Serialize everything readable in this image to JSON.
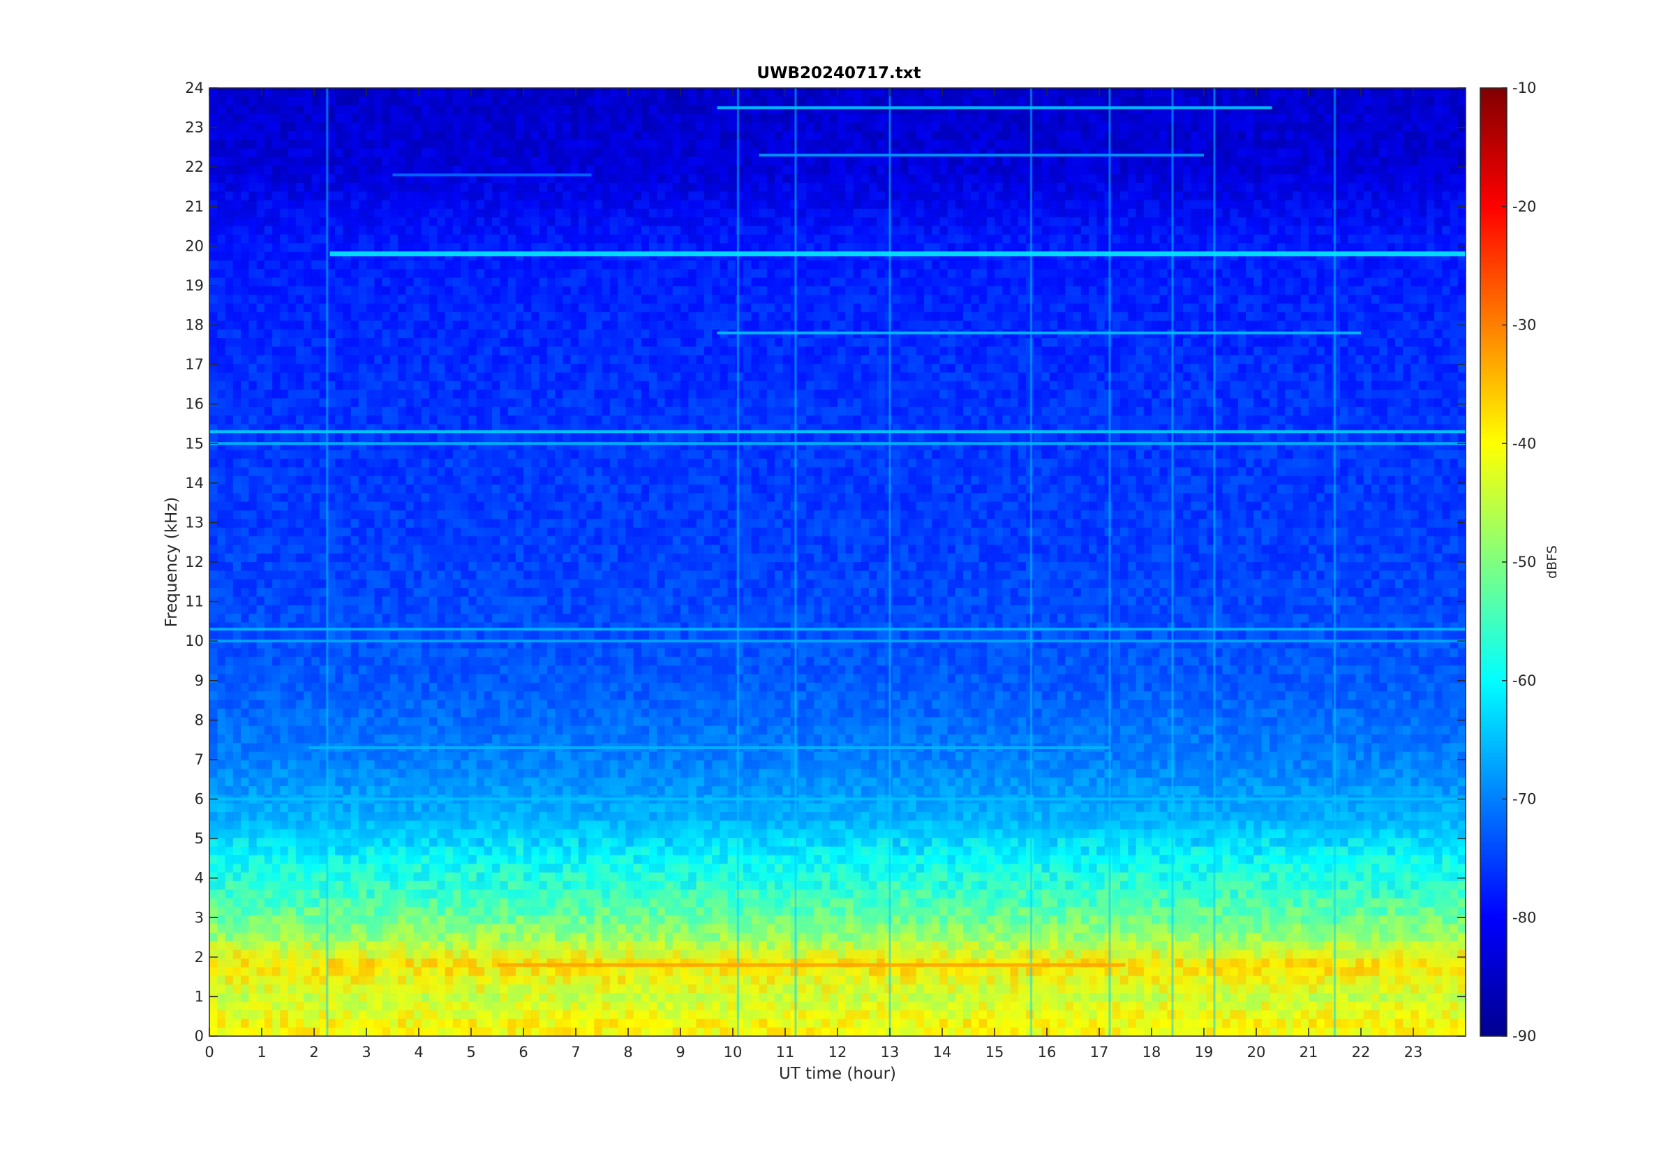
{
  "chart_data": {
    "type": "heatmap",
    "title": "UWB20240717.txt",
    "xlabel": "UT time (hour)",
    "ylabel": "Frequency (kHz)",
    "xlim": [
      0,
      24
    ],
    "ylim": [
      0,
      24
    ],
    "x_ticks": [
      "0",
      "1",
      "2",
      "3",
      "4",
      "5",
      "6",
      "7",
      "8",
      "9",
      "10",
      "11",
      "12",
      "13",
      "14",
      "15",
      "16",
      "17",
      "18",
      "19",
      "20",
      "21",
      "22",
      "23"
    ],
    "y_ticks": [
      "0",
      "1",
      "2",
      "3",
      "4",
      "5",
      "6",
      "7",
      "8",
      "9",
      "10",
      "11",
      "12",
      "13",
      "14",
      "15",
      "16",
      "17",
      "18",
      "19",
      "20",
      "21",
      "22",
      "23",
      "24"
    ],
    "colorbar": {
      "label": "dBFS",
      "colormap": "jet",
      "clim": [
        -90,
        -10
      ],
      "ticks": [
        "-10",
        "-20",
        "-30",
        "-40",
        "-50",
        "-60",
        "-70",
        "-80",
        "-90"
      ]
    },
    "background_level_profile": [
      {
        "freq_khz": 0.3,
        "dbfs": -40
      },
      {
        "freq_khz": 1.0,
        "dbfs": -44
      },
      {
        "freq_khz": 1.8,
        "dbfs": -38
      },
      {
        "freq_khz": 2.5,
        "dbfs": -48
      },
      {
        "freq_khz": 3.5,
        "dbfs": -55
      },
      {
        "freq_khz": 4.5,
        "dbfs": -60
      },
      {
        "freq_khz": 5.5,
        "dbfs": -66
      },
      {
        "freq_khz": 7.0,
        "dbfs": -70
      },
      {
        "freq_khz": 9.0,
        "dbfs": -73
      },
      {
        "freq_khz": 12.0,
        "dbfs": -75
      },
      {
        "freq_khz": 16.0,
        "dbfs": -76
      },
      {
        "freq_khz": 20.0,
        "dbfs": -78
      },
      {
        "freq_khz": 22.0,
        "dbfs": -83
      },
      {
        "freq_khz": 24.0,
        "dbfs": -84
      }
    ],
    "tonal_lines": [
      {
        "freq_khz": 19.8,
        "t_start": 2.3,
        "t_end": 24.0,
        "dbfs": -62
      },
      {
        "freq_khz": 23.5,
        "t_start": 9.7,
        "t_end": 20.3,
        "dbfs": -65
      },
      {
        "freq_khz": 22.3,
        "t_start": 10.5,
        "t_end": 19.0,
        "dbfs": -68
      },
      {
        "freq_khz": 21.8,
        "t_start": 3.5,
        "t_end": 7.3,
        "dbfs": -72
      },
      {
        "freq_khz": 17.8,
        "t_start": 9.7,
        "t_end": 22.0,
        "dbfs": -65
      },
      {
        "freq_khz": 15.3,
        "t_start": 0.0,
        "t_end": 24.0,
        "dbfs": -64
      },
      {
        "freq_khz": 15.0,
        "t_start": 0.0,
        "t_end": 24.0,
        "dbfs": -66
      },
      {
        "freq_khz": 10.3,
        "t_start": 0.0,
        "t_end": 24.0,
        "dbfs": -66
      },
      {
        "freq_khz": 10.0,
        "t_start": 0.0,
        "t_end": 24.0,
        "dbfs": -67
      },
      {
        "freq_khz": 7.3,
        "t_start": 1.9,
        "t_end": 17.2,
        "dbfs": -66
      },
      {
        "freq_khz": 6.0,
        "t_start": 0.0,
        "t_end": 24.0,
        "dbfs": -65
      },
      {
        "freq_khz": 1.8,
        "t_start": 5.5,
        "t_end": 17.5,
        "dbfs": -33
      }
    ],
    "vertical_streaks_hour": [
      2.25,
      10.1,
      11.2,
      13.0,
      15.7,
      17.2,
      18.4,
      19.2,
      21.5
    ]
  }
}
